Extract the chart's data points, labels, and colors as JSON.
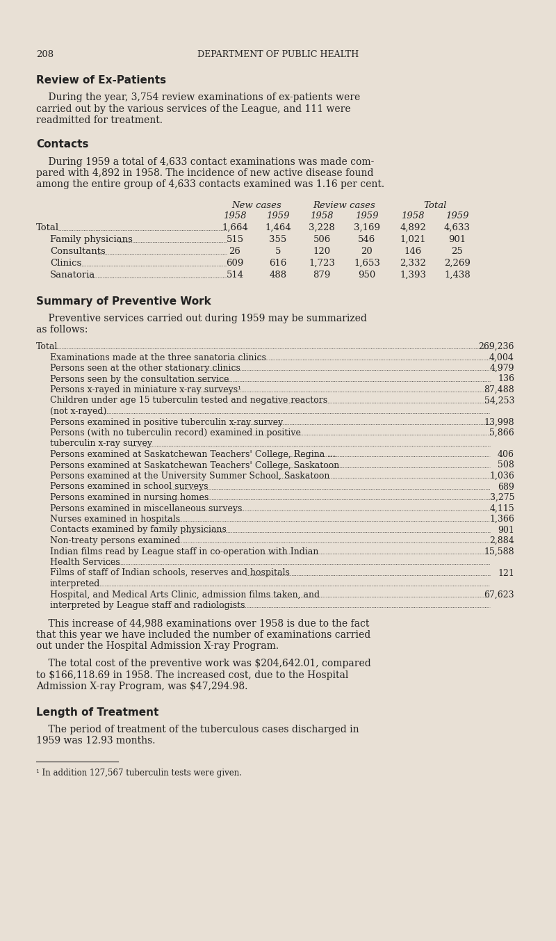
{
  "bg_color": "#e8e0d5",
  "text_color": "#222222",
  "page_number": "208",
  "header_text": "DEPARTMENT OF PUBLIC HEALTH",
  "section1_title": "Review of Ex-Patients",
  "section1_lines": [
    "    During the year, 3,754 review examinations of ex-patients were",
    "carried out by the various services of the League, and 111 were",
    "readmitted for treatment."
  ],
  "section2_title": "Contacts",
  "section2_lines": [
    "    During 1959 a total of 4,633 contact examinations was made com-",
    "pared with 4,892 in 1958. The incidence of new active disease found",
    "among the entire group of 4,633 contacts examined was 1.16 per cent."
  ],
  "table_col_header1": [
    "New cases",
    "Review cases",
    "Total"
  ],
  "table_col_header2": [
    "1958",
    "1959",
    "1958",
    "1959",
    "1958",
    "1959"
  ],
  "table_rows": [
    [
      "Total",
      "1,664",
      "1,464",
      "3,228",
      "3,169",
      "4,892",
      "4,633"
    ],
    [
      "Family physicians",
      "515",
      "355",
      "506",
      "546",
      "1,021",
      "901"
    ],
    [
      "Consultants",
      "26",
      "5",
      "120",
      "20",
      "146",
      "25"
    ],
    [
      "Clinics",
      "609",
      "616",
      "1,723",
      "1,653",
      "2,332",
      "2,269"
    ],
    [
      "Sanatoria",
      "514",
      "488",
      "879",
      "950",
      "1,393",
      "1,438"
    ]
  ],
  "section3_title": "Summary of Preventive Work",
  "section3_lines": [
    "    Preventive services carried out during 1959 may be summarized",
    "as follows:"
  ],
  "preventive_items": [
    [
      "Total",
      "269,236",
      false
    ],
    [
      "Examinations made at the three sanatoria clinics",
      "4,004",
      true
    ],
    [
      "Persons seen at the other stationary clinics",
      "4,979",
      true
    ],
    [
      "Persons seen by the consultation service",
      "136",
      true
    ],
    [
      "Persons x-rayed in miniature x-ray surveys¹",
      "87,488",
      true
    ],
    [
      "Children under age 15 tuberculin tested and negative reactors",
      "54,253",
      true
    ],
    [
      "(not x-rayed)",
      "",
      true
    ],
    [
      "Persons examined in positive tuberculin x-ray survey",
      "13,998",
      true
    ],
    [
      "Persons (with no tuberculin record) examined in positive",
      "5,866",
      true
    ],
    [
      "tuberculin x-ray survey",
      "",
      true
    ],
    [
      "Persons examined at Saskatchewan Teachers' College, Regina ...",
      "406",
      true
    ],
    [
      "Persons examined at Saskatchewan Teachers' College, Saskatoon",
      "508",
      true
    ],
    [
      "Persons examined at the University Summer School, Saskatoon",
      "1,036",
      true
    ],
    [
      "Persons examined in school surveys",
      "689",
      true
    ],
    [
      "Persons examined in nursing homes",
      "3,275",
      true
    ],
    [
      "Persons examined in miscellaneous surveys",
      "4,115",
      true
    ],
    [
      "Nurses examined in hospitals",
      "1,366",
      true
    ],
    [
      "Contacts examined by family physicians",
      "901",
      true
    ],
    [
      "Non-treaty persons examined",
      "2,884",
      true
    ],
    [
      "Indian films read by League staff in co-operation with Indian",
      "15,588",
      true
    ],
    [
      "Health Services",
      "",
      true
    ],
    [
      "Films of staff of Indian schools, reserves and hospitals",
      "121",
      true
    ],
    [
      "interpreted",
      "",
      true
    ],
    [
      "Hospital, and Medical Arts Clinic, admission films taken, and",
      "67,623",
      true
    ],
    [
      "interpreted by League staff and radiologists",
      "",
      true
    ]
  ],
  "section3_para2_lines": [
    "    This increase of 44,988 examinations over 1958 is due to the fact",
    "that this year we have included the number of examinations carried",
    "out under the Hospital Admission X-ray Program."
  ],
  "section3_para3_lines": [
    "    The total cost of the preventive work was $204,642.01, compared",
    "to $166,118.69 in 1958. The increased cost, due to the Hospital",
    "Admission X-ray Program, was $47,294.98."
  ],
  "section4_title": "Length of Treatment",
  "section4_lines": [
    "    The period of treatment of the tuberculous cases discharged in",
    "1959 was 12.93 months."
  ],
  "footnote": "¹ In addition 127,567 tuberculin tests were given."
}
